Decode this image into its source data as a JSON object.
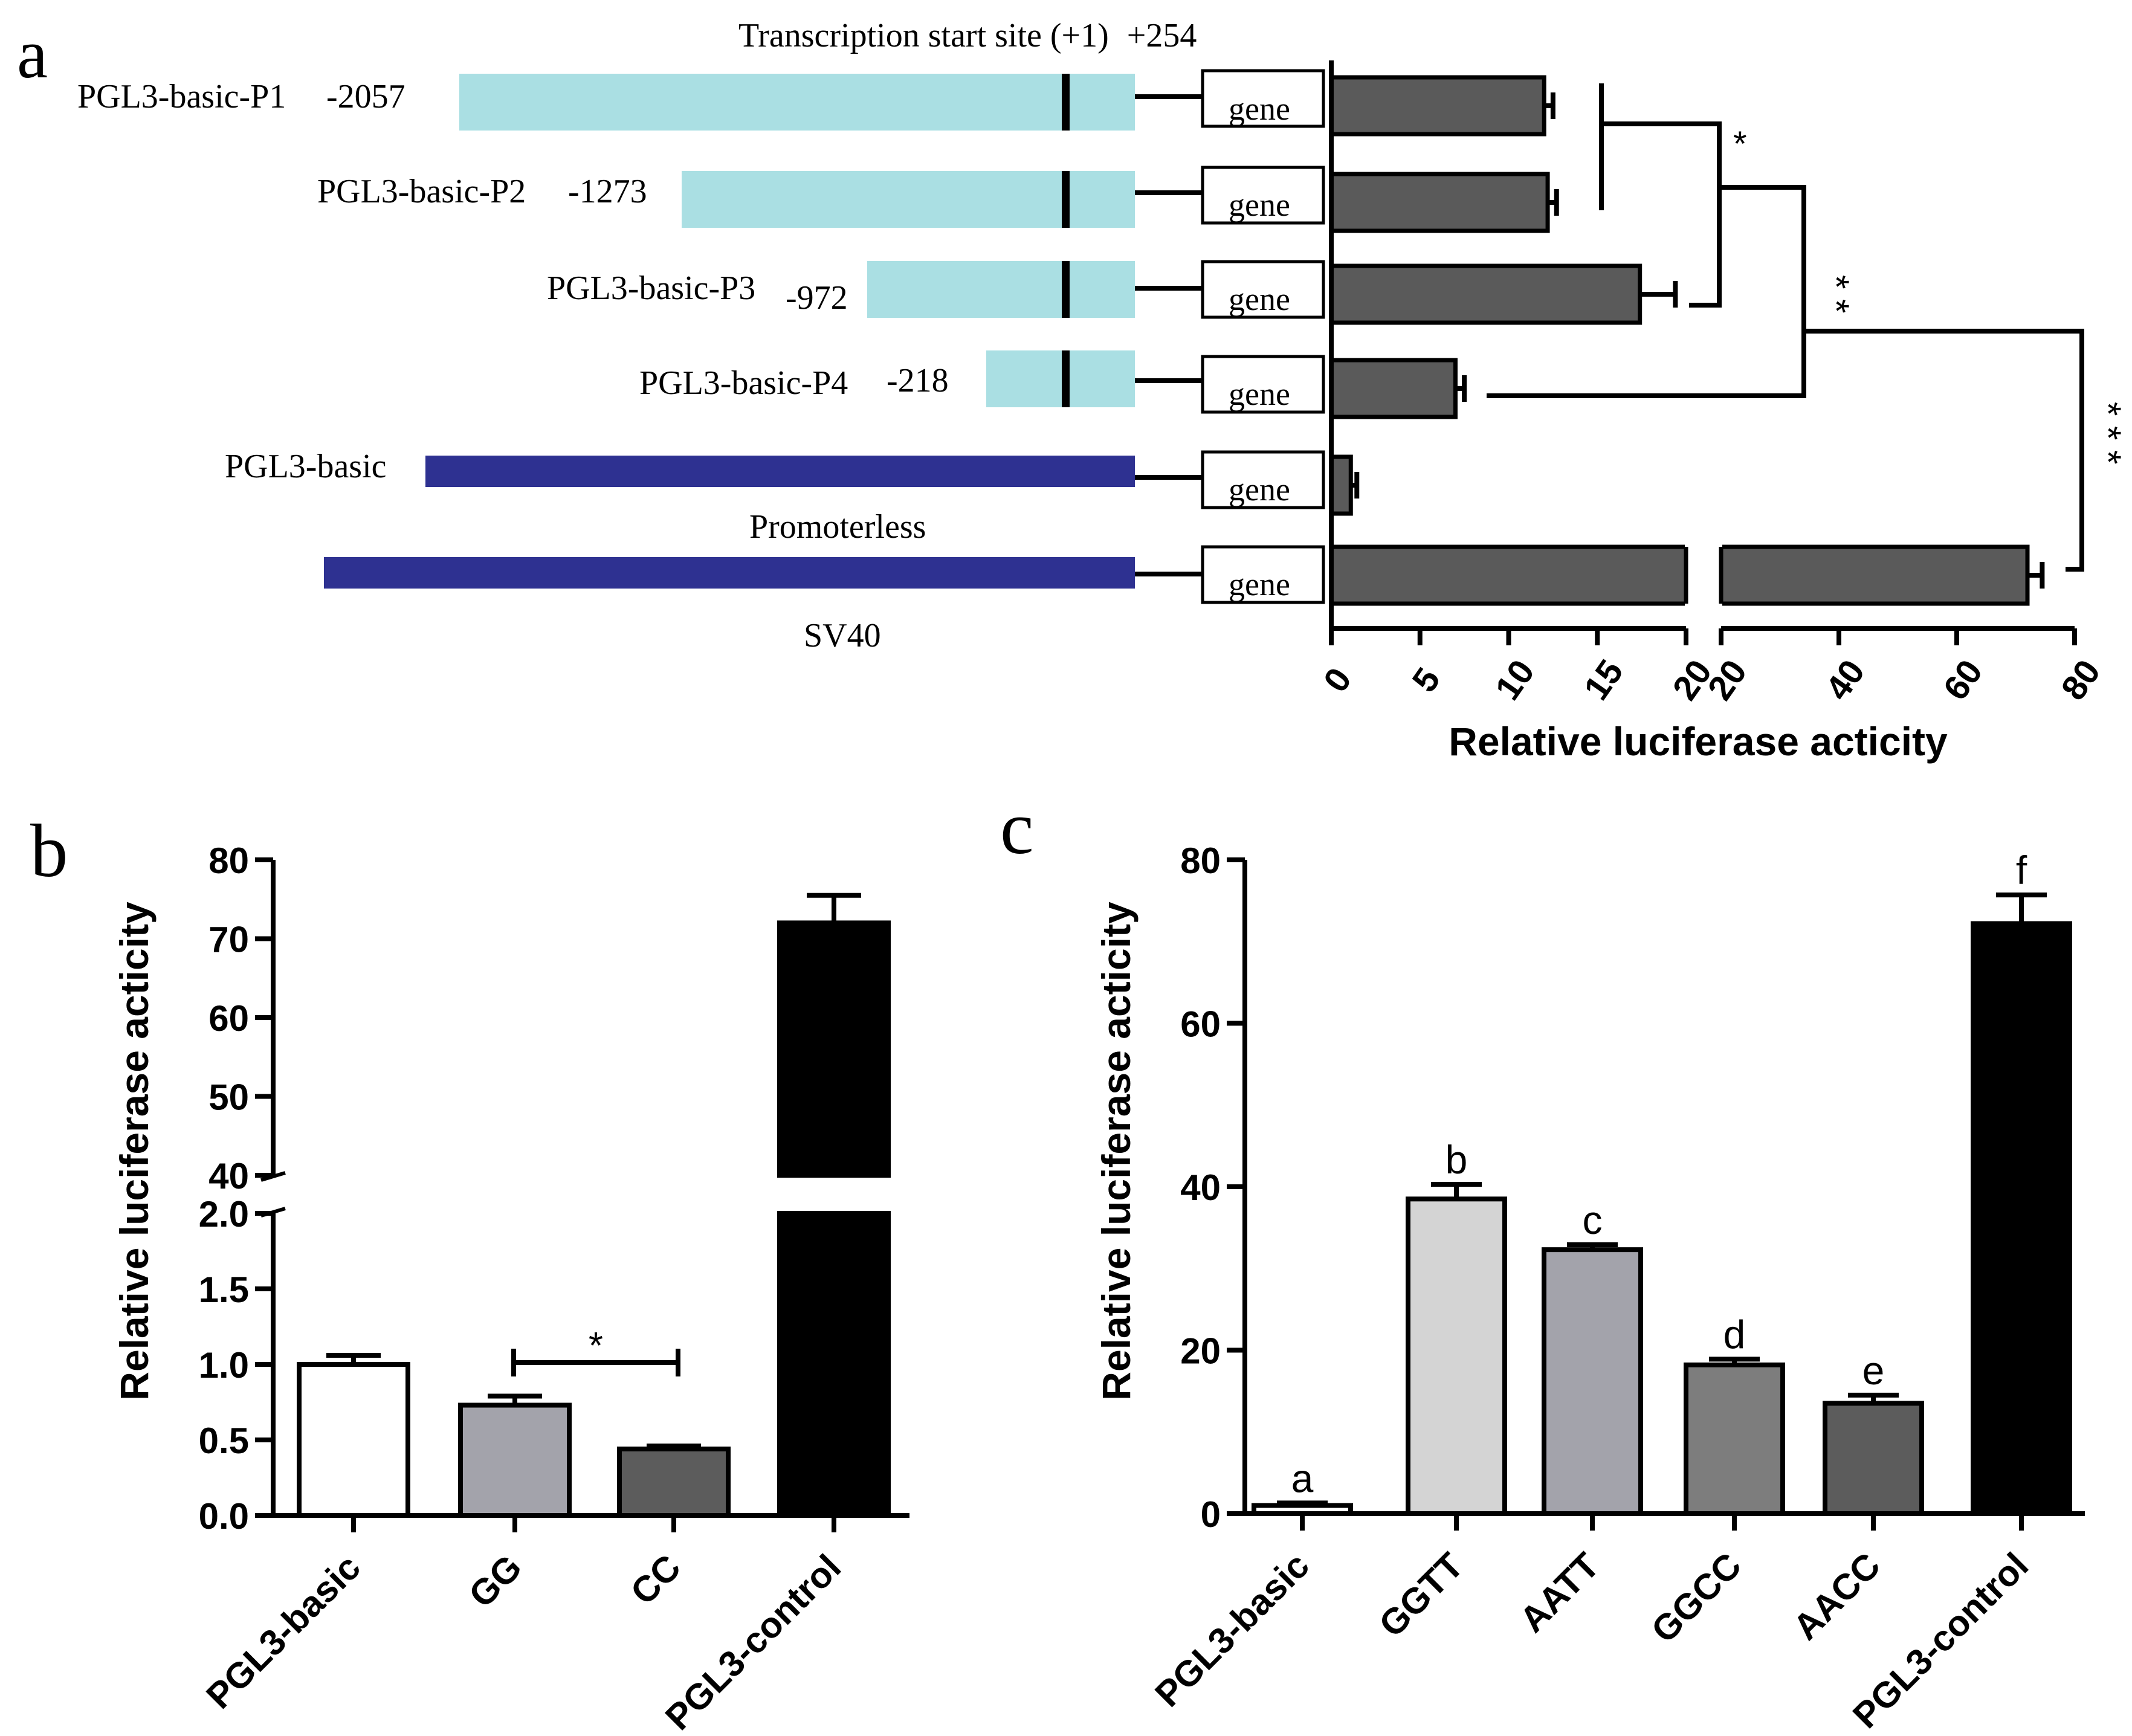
{
  "panel_a": {
    "label": "a",
    "tss_label": "Transcription start site (+1)",
    "tss_end": "+254",
    "gene_label": "gene",
    "promoterless_label": "Promoterless",
    "sv40_label": "SV40",
    "xlabel": "Relative luciferase acticity",
    "colors": {
      "fragment": "#aadfe3",
      "vector": "#2e3191",
      "bar": "#5a5a5a"
    },
    "constructs": [
      {
        "name": "PGL3-basic-P1",
        "start": "-2057"
      },
      {
        "name": "PGL3-basic-P2",
        "start": "-1273"
      },
      {
        "name": "PGL3-basic-P3",
        "start": "-972"
      },
      {
        "name": "PGL3-basic-P4",
        "start": "-218"
      },
      {
        "name": "PGL3-basic",
        "start": ""
      }
    ],
    "significance": [
      "*",
      "* *",
      "* * *"
    ]
  },
  "panel_b": {
    "label": "b",
    "ylabel": "Relative luciferase acticity",
    "significance": "*",
    "colors": [
      "#ffffff",
      "#a3a3ab",
      "#5c5c5c",
      "#000000"
    ]
  },
  "panel_c": {
    "label": "c",
    "ylabel": "Relative luciferase acticity",
    "colors": [
      "#ffffff",
      "#d4d4d4",
      "#a3a3ab",
      "#7d7d7d",
      "#5c5c5c",
      "#000000"
    ]
  },
  "chart_data": [
    {
      "type": "bar",
      "orientation": "horizontal",
      "panel": "a",
      "categories": [
        "PGL3-basic-P1",
        "PGL3-basic-P2",
        "PGL3-basic-P3",
        "PGL3-basic-P4",
        "PGL3-basic",
        "SV40"
      ],
      "values": [
        12.0,
        12.2,
        17.4,
        7.0,
        1.1,
        72.0
      ],
      "errors": [
        0.5,
        0.5,
        2.0,
        0.5,
        0.2,
        2.5
      ],
      "xlabel": "Relative luciferase acticity",
      "axis_break": [
        20,
        20
      ],
      "xlim": [
        0,
        80
      ],
      "xticks_low": [
        0,
        5,
        10,
        15,
        20
      ],
      "xticks_high": [
        20,
        40,
        60,
        80
      ]
    },
    {
      "type": "bar",
      "panel": "b",
      "categories": [
        "PGL3-basic",
        "GG",
        "CC",
        "PGL3-control"
      ],
      "values": [
        1.0,
        0.73,
        0.44,
        72.0
      ],
      "errors": [
        0.06,
        0.06,
        0.02,
        3.5
      ],
      "ylabel": "Relative luciferase acticity",
      "axis_break": [
        2.0,
        40
      ],
      "ylim": [
        0,
        80
      ],
      "yticks_low": [
        "0.0",
        "0.5",
        "1.0",
        "1.5",
        "2.0"
      ],
      "yticks_high": [
        "40",
        "50",
        "60",
        "70",
        "80"
      ]
    },
    {
      "type": "bar",
      "panel": "c",
      "categories": [
        "PGL3-basic",
        "GGTT",
        "AATT",
        "GGCC",
        "AACC",
        "PGL3-control"
      ],
      "values": [
        1.0,
        38.5,
        32.3,
        18.2,
        13.5,
        72.2
      ],
      "errors": [
        0.3,
        1.8,
        0.6,
        0.7,
        1.0,
        3.5
      ],
      "letters": [
        "a",
        "b",
        "c",
        "d",
        "e",
        "f"
      ],
      "ylabel": "Relative luciferase acticity",
      "ylim": [
        0,
        80
      ],
      "yticks": [
        "0",
        "20",
        "40",
        "60",
        "80"
      ]
    }
  ]
}
